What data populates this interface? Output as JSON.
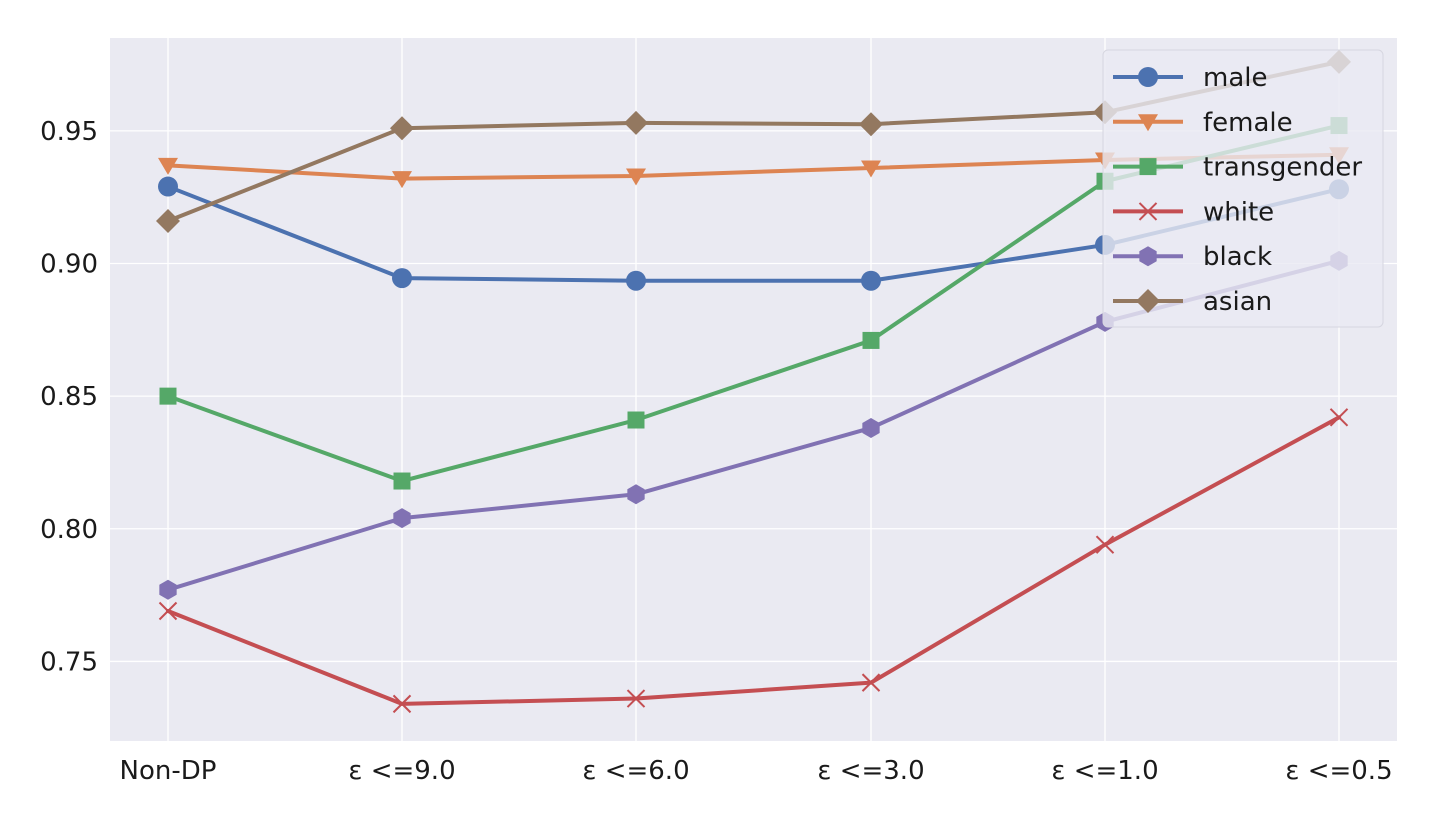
{
  "chart_data": {
    "type": "line",
    "categories": [
      "Non-DP",
      "ε <=9.0",
      "ε <=6.0",
      "ε <=3.0",
      "ε <=1.0",
      "ε <=0.5"
    ],
    "ylim": [
      0.72,
      0.985
    ],
    "yticks": [
      0.75,
      0.8,
      0.85,
      0.9,
      0.95
    ],
    "ytick_labels": [
      "0.75",
      "0.80",
      "0.85",
      "0.90",
      "0.95"
    ],
    "grid": true,
    "background": "#eaeaf2",
    "legend_position": "top-right",
    "title": "",
    "xlabel": "",
    "ylabel": "",
    "series": [
      {
        "name": "male",
        "color": "#4c72b0",
        "marker": "circle",
        "values": [
          0.929,
          0.8945,
          0.8935,
          0.8935,
          0.907,
          0.928
        ]
      },
      {
        "name": "female",
        "color": "#dd8452",
        "marker": "triangle-down",
        "values": [
          0.937,
          0.932,
          0.933,
          0.936,
          0.939,
          0.941
        ]
      },
      {
        "name": "transgender",
        "color": "#55a868",
        "marker": "square",
        "values": [
          0.85,
          0.818,
          0.841,
          0.871,
          0.931,
          0.952
        ]
      },
      {
        "name": "white",
        "color": "#c44e52",
        "marker": "x",
        "values": [
          0.769,
          0.734,
          0.736,
          0.742,
          0.794,
          0.842
        ]
      },
      {
        "name": "black",
        "color": "#8172b3",
        "marker": "hexagon",
        "values": [
          0.777,
          0.804,
          0.813,
          0.838,
          0.878,
          0.901
        ]
      },
      {
        "name": "asian",
        "color": "#937860",
        "marker": "diamond",
        "values": [
          0.916,
          0.951,
          0.953,
          0.9525,
          0.957,
          0.976
        ]
      }
    ]
  }
}
